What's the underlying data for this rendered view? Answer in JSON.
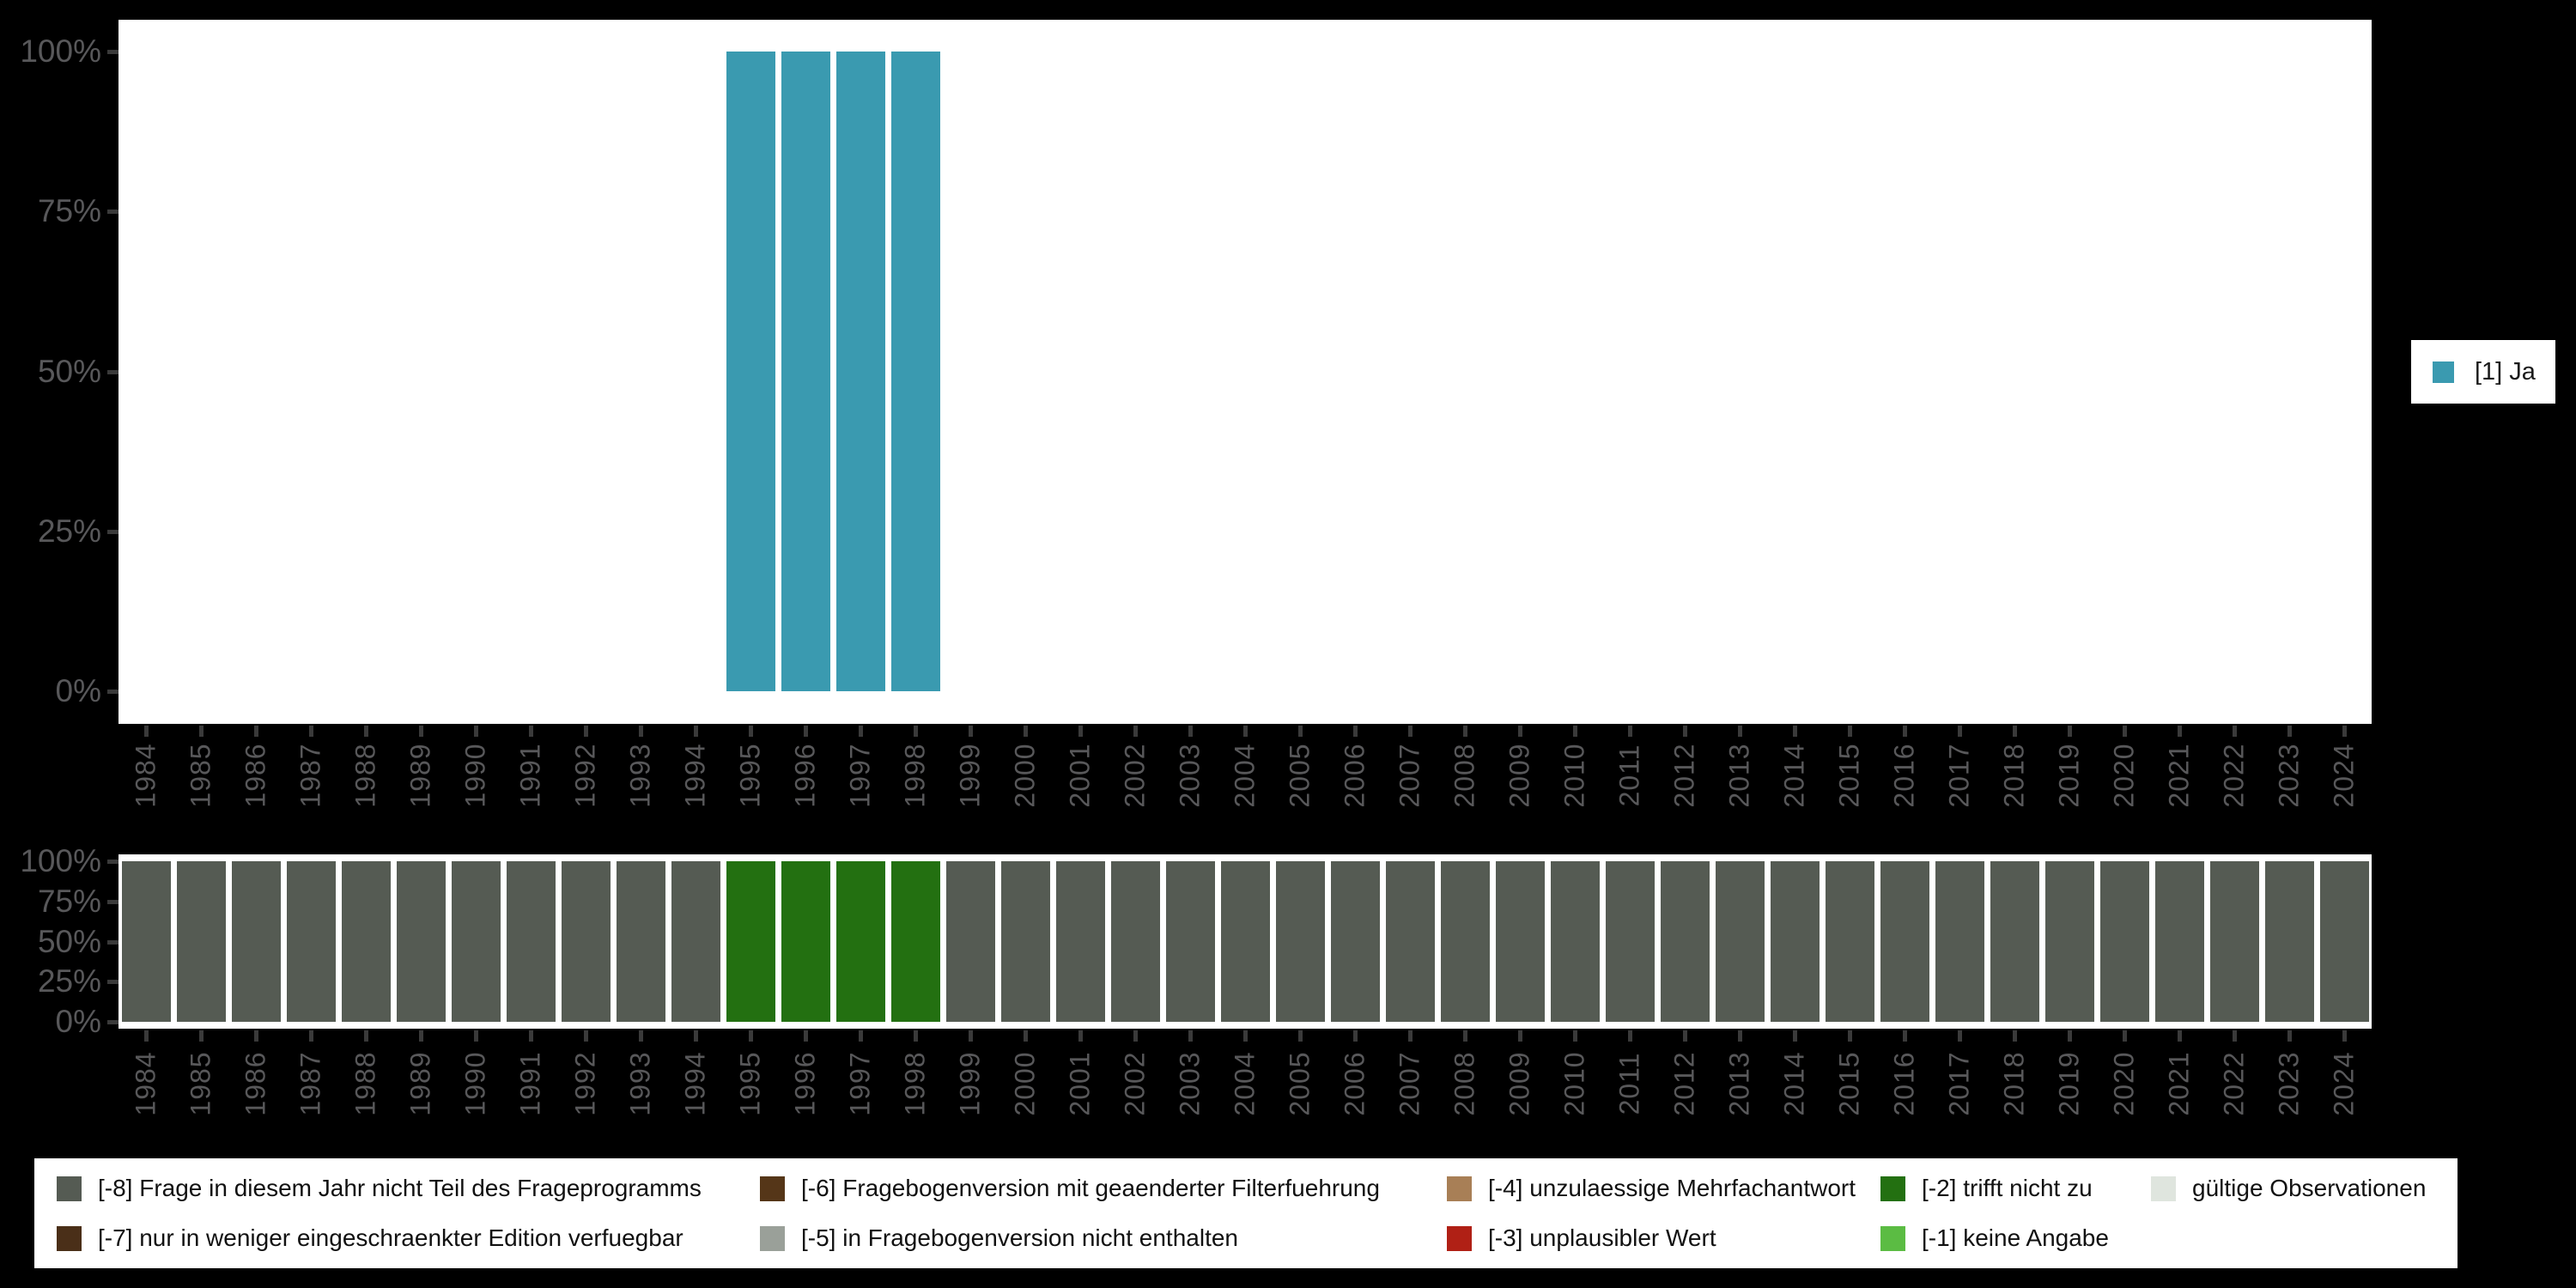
{
  "background_color": "#000000",
  "panel_color": "#FFFFFF",
  "axis": {
    "text_color": "#58585A",
    "tick_color": "#3A3A3A",
    "ytick_labels": [
      "100%",
      "75%",
      "50%",
      "25%",
      "0%"
    ],
    "ytick_values": [
      100,
      75,
      50,
      25,
      0
    ]
  },
  "years": [
    "1984",
    "1985",
    "1986",
    "1987",
    "1988",
    "1989",
    "1990",
    "1991",
    "1992",
    "1993",
    "1994",
    "1995",
    "1996",
    "1997",
    "1998",
    "1999",
    "2000",
    "2001",
    "2002",
    "2003",
    "2004",
    "2005",
    "2006",
    "2007",
    "2008",
    "2009",
    "2010",
    "2011",
    "2012",
    "2013",
    "2014",
    "2015",
    "2016",
    "2017",
    "2018",
    "2019",
    "2020",
    "2021",
    "2022",
    "2023",
    "2024"
  ],
  "chart_data": [
    {
      "type": "bar",
      "title": "",
      "xlabel": "",
      "ylabel": "",
      "ylim": [
        0,
        100
      ],
      "ytick_labels": [
        "0%",
        "25%",
        "50%",
        "75%",
        "100%"
      ],
      "grid": false,
      "legend_position": "right",
      "categories": [
        "1984",
        "1985",
        "1986",
        "1987",
        "1988",
        "1989",
        "1990",
        "1991",
        "1992",
        "1993",
        "1994",
        "1995",
        "1996",
        "1997",
        "1998",
        "1999",
        "2000",
        "2001",
        "2002",
        "2003",
        "2004",
        "2005",
        "2006",
        "2007",
        "2008",
        "2009",
        "2010",
        "2011",
        "2012",
        "2013",
        "2014",
        "2015",
        "2016",
        "2017",
        "2018",
        "2019",
        "2020",
        "2021",
        "2022",
        "2023",
        "2024"
      ],
      "series": [
        {
          "name": "[1] Ja",
          "color": "#3A9AB0",
          "values": [
            0,
            0,
            0,
            0,
            0,
            0,
            0,
            0,
            0,
            0,
            0,
            100,
            100,
            100,
            100,
            0,
            0,
            0,
            0,
            0,
            0,
            0,
            0,
            0,
            0,
            0,
            0,
            0,
            0,
            0,
            0,
            0,
            0,
            0,
            0,
            0,
            0,
            0,
            0,
            0,
            0
          ]
        }
      ]
    },
    {
      "type": "bar",
      "subtype": "stacked-100pct-missing-codes",
      "title": "",
      "ylim": [
        0,
        100
      ],
      "ytick_labels": [
        "0%",
        "25%",
        "50%",
        "75%",
        "100%"
      ],
      "grid": false,
      "categories": [
        "1984",
        "1985",
        "1986",
        "1987",
        "1988",
        "1989",
        "1990",
        "1991",
        "1992",
        "1993",
        "1994",
        "1995",
        "1996",
        "1997",
        "1998",
        "1999",
        "2000",
        "2001",
        "2002",
        "2003",
        "2004",
        "2005",
        "2006",
        "2007",
        "2008",
        "2009",
        "2010",
        "2011",
        "2012",
        "2013",
        "2014",
        "2015",
        "2016",
        "2017",
        "2018",
        "2019",
        "2020",
        "2021",
        "2022",
        "2023",
        "2024"
      ],
      "values": [
        100,
        100,
        100,
        100,
        100,
        100,
        100,
        100,
        100,
        100,
        100,
        100,
        100,
        100,
        100,
        100,
        100,
        100,
        100,
        100,
        100,
        100,
        100,
        100,
        100,
        100,
        100,
        100,
        100,
        100,
        100,
        100,
        100,
        100,
        100,
        100,
        100,
        100,
        100,
        100,
        100
      ],
      "segment_codes": [
        "-8",
        "-8",
        "-8",
        "-8",
        "-8",
        "-8",
        "-8",
        "-8",
        "-8",
        "-8",
        "-8",
        "-2",
        "-2",
        "-2",
        "-2",
        "-8",
        "-8",
        "-8",
        "-8",
        "-8",
        "-8",
        "-8",
        "-8",
        "-8",
        "-8",
        "-8",
        "-8",
        "-8",
        "-8",
        "-8",
        "-8",
        "-8",
        "-8",
        "-8",
        "-8",
        "-8",
        "-8",
        "-8",
        "-8",
        "-8",
        "-8"
      ],
      "code_colors": {
        "-8": "#555B53",
        "-2": "#237011"
      }
    }
  ],
  "top_legend": {
    "items": [
      {
        "label": "[1] Ja",
        "color": "#3A9AB0"
      }
    ]
  },
  "bottom_legend": {
    "items": [
      {
        "label": "[-8] Frage in diesem Jahr nicht Teil des Frageprogramms",
        "color": "#555B53",
        "col": 0,
        "row": 0
      },
      {
        "label": "[-7] nur in weniger eingeschraenkter Edition verfuegbar",
        "color": "#4A2F18",
        "col": 0,
        "row": 1
      },
      {
        "label": "[-6] Fragebogenversion mit geaenderter Filterfuehrung",
        "color": "#553618",
        "col": 1,
        "row": 0
      },
      {
        "label": "[-5] in Fragebogenversion nicht enthalten",
        "color": "#9AA099",
        "col": 1,
        "row": 1
      },
      {
        "label": "[-4] unzulaessige Mehrfachantwort",
        "color": "#A87F56",
        "col": 2,
        "row": 0
      },
      {
        "label": "[-3] unplausibler Wert",
        "color": "#B02015",
        "col": 2,
        "row": 1
      },
      {
        "label": "[-2] trifft nicht zu",
        "color": "#237011",
        "col": 3,
        "row": 0
      },
      {
        "label": "[-1] keine Angabe",
        "color": "#5BBC43",
        "col": 3,
        "row": 1
      },
      {
        "label": "gültige Observationen",
        "color": "#DFE5DE",
        "col": 4,
        "row": 0
      }
    ]
  }
}
